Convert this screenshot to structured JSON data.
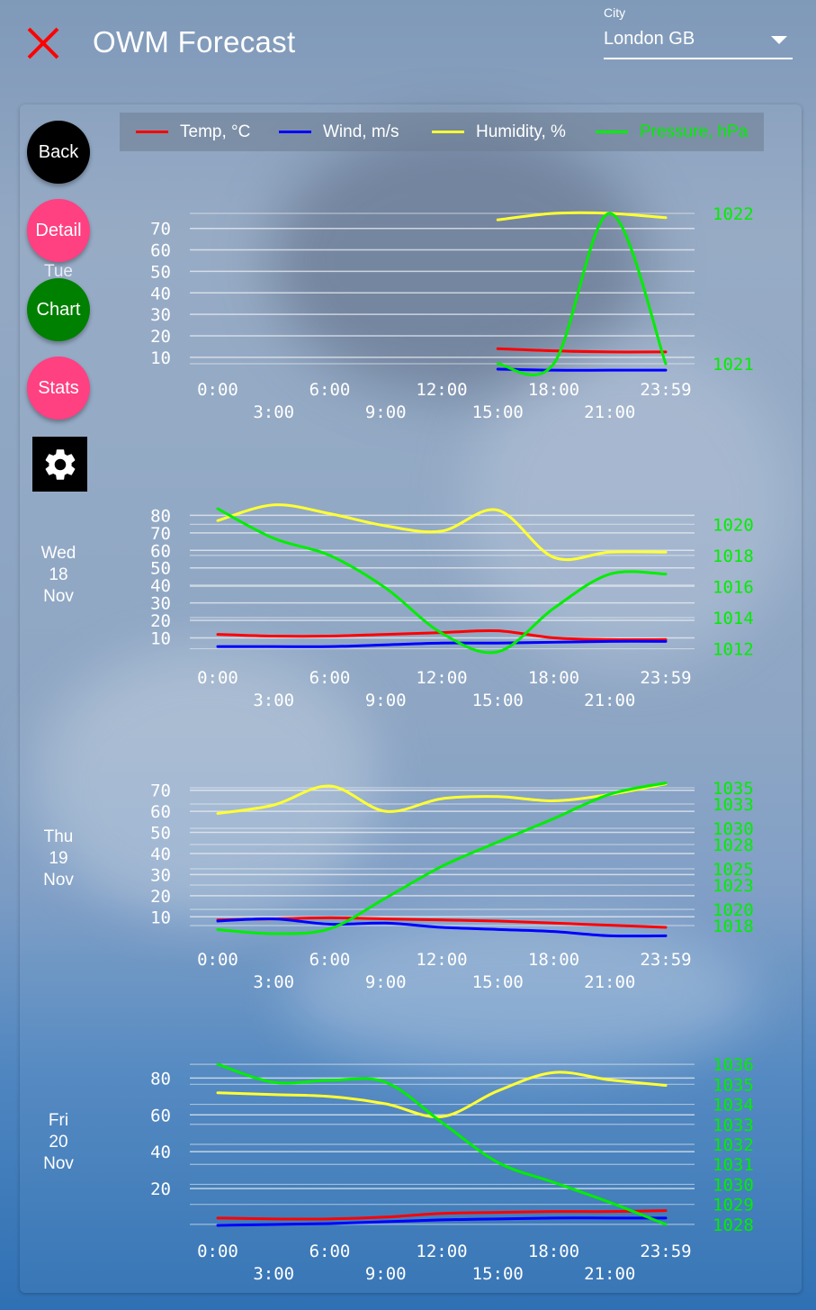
{
  "app": {
    "title": "OWM Forecast",
    "city_label": "City",
    "city_value": "London GB"
  },
  "icons": {
    "close": "close-icon",
    "settings": "gear-icon",
    "dropdown": "chevron-down-icon"
  },
  "colors": {
    "temp": "#ff0000",
    "wind": "#0000ff",
    "humidity": "#ffff33",
    "pressure": "#00ee00",
    "close": "#ff0000",
    "back": "#000000",
    "detail": "#ff4081",
    "chart": "#008000",
    "stats": "#ff4081"
  },
  "buttons": {
    "back": "Back",
    "detail": "Detail",
    "chart": "Chart",
    "stats": "Stats"
  },
  "legend": [
    {
      "label": "Temp, °C",
      "color": "#ff0000"
    },
    {
      "label": "Wind, m/s",
      "color": "#0000ff"
    },
    {
      "label": "Humidity, %",
      "color": "#ffff33"
    },
    {
      "label": "Pressure, hPa",
      "color": "#00ee00"
    }
  ],
  "days": [
    {
      "lines": [
        "Tue"
      ]
    },
    {
      "lines": [
        "Wed",
        "18",
        "Nov"
      ]
    },
    {
      "lines": [
        "Thu",
        "19",
        "Nov"
      ]
    },
    {
      "lines": [
        "Fri",
        "20",
        "Nov"
      ]
    }
  ],
  "chart_data": [
    {
      "type": "line",
      "day": "Tue",
      "x_ticks_row1": [
        "0:00",
        "6:00",
        "12:00",
        "18:00",
        "23:59"
      ],
      "x_ticks_row2": [
        "3:00",
        "9:00",
        "15:00",
        "21:00"
      ],
      "y_left": {
        "ticks": [
          "10",
          "20",
          "30",
          "40",
          "50",
          "60",
          "70"
        ],
        "lim": [
          7,
          77
        ]
      },
      "y_right": {
        "ticks": [
          "1021",
          "1022"
        ],
        "lim": [
          1021.0,
          1022.0
        ]
      },
      "series": [
        {
          "name": "Humidity, %",
          "axis": "left",
          "x": [
            15,
            18,
            21,
            24
          ],
          "values": [
            74,
            77,
            77,
            75
          ]
        },
        {
          "name": "Temp, °C",
          "axis": "left",
          "x": [
            15,
            18,
            21,
            24
          ],
          "values": [
            14,
            13,
            12.5,
            12.5
          ]
        },
        {
          "name": "Wind, m/s",
          "axis": "left",
          "x": [
            15,
            18,
            21,
            24
          ],
          "values": [
            4.5,
            4,
            4,
            4
          ]
        },
        {
          "name": "Pressure, hPa",
          "axis": "right",
          "x": [
            15,
            18,
            21,
            24
          ],
          "values": [
            1021.0,
            1021.0,
            1022.0,
            1021.0
          ]
        }
      ]
    },
    {
      "type": "line",
      "day": "Wed 18 Nov",
      "x_ticks_row1": [
        "0:00",
        "6:00",
        "12:00",
        "18:00",
        "23:59"
      ],
      "x_ticks_row2": [
        "3:00",
        "9:00",
        "15:00",
        "21:00"
      ],
      "y_left": {
        "ticks": [
          "10",
          "20",
          "30",
          "40",
          "50",
          "60",
          "70",
          "80"
        ],
        "lim": [
          2,
          90
        ]
      },
      "y_right": {
        "ticks": [
          "1012",
          "1014",
          "1016",
          "1018",
          "1020"
        ],
        "lim": [
          1011.8,
          1021.7
        ]
      },
      "series": [
        {
          "name": "Humidity, %",
          "axis": "left",
          "x": [
            0,
            3,
            6,
            9,
            12,
            15,
            18,
            21,
            24
          ],
          "values": [
            77,
            86,
            81,
            74,
            71,
            83,
            56,
            59,
            59
          ]
        },
        {
          "name": "Temp, °C",
          "axis": "left",
          "x": [
            0,
            3,
            6,
            9,
            12,
            15,
            18,
            21,
            24
          ],
          "values": [
            12,
            11,
            11,
            12,
            13,
            14,
            10,
            9,
            9
          ]
        },
        {
          "name": "Wind, m/s",
          "axis": "left",
          "x": [
            0,
            3,
            6,
            9,
            12,
            15,
            18,
            21,
            24
          ],
          "values": [
            5,
            5,
            5,
            6,
            7,
            7,
            7.5,
            8,
            8
          ]
        },
        {
          "name": "Pressure, hPa",
          "axis": "right",
          "x": [
            0,
            3,
            6,
            9,
            12,
            15,
            18,
            21,
            24
          ],
          "values": [
            1021.0,
            1019.1,
            1018.0,
            1015.9,
            1013.0,
            1011.8,
            1014.6,
            1016.8,
            1016.8
          ]
        }
      ]
    },
    {
      "type": "line",
      "day": "Thu 19 Nov",
      "x_ticks_row1": [
        "0:00",
        "6:00",
        "12:00",
        "18:00",
        "23:59"
      ],
      "x_ticks_row2": [
        "3:00",
        "9:00",
        "15:00",
        "21:00"
      ],
      "y_left": {
        "ticks": [
          "10",
          "20",
          "30",
          "40",
          "50",
          "60",
          "70"
        ],
        "lim": [
          2,
          75
        ]
      },
      "y_right": {
        "ticks": [
          "1018",
          "1020",
          "1023",
          "1025",
          "1028",
          "1030",
          "1033",
          "1035"
        ],
        "lim": [
          1017,
          1036
        ]
      },
      "series": [
        {
          "name": "Humidity, %",
          "axis": "left",
          "x": [
            0,
            3,
            6,
            9,
            12,
            15,
            18,
            21,
            24
          ],
          "values": [
            59,
            63,
            72,
            60,
            66,
            67,
            65,
            68,
            73
          ]
        },
        {
          "name": "Temp, °C",
          "axis": "left",
          "x": [
            0,
            3,
            6,
            9,
            12,
            15,
            18,
            21,
            24
          ],
          "values": [
            8.5,
            9,
            9.5,
            9,
            8.5,
            8,
            7,
            6,
            5
          ]
        },
        {
          "name": "Wind, m/s",
          "axis": "left",
          "x": [
            0,
            3,
            6,
            9,
            12,
            15,
            18,
            21,
            24
          ],
          "values": [
            8,
            9,
            6.5,
            7,
            5,
            4,
            3,
            1,
            1
          ]
        },
        {
          "name": "Pressure, hPa",
          "axis": "right",
          "x": [
            0,
            3,
            6,
            9,
            12,
            15,
            18,
            21,
            24
          ],
          "values": [
            1017.5,
            1017.0,
            1017.6,
            1021.4,
            1025.3,
            1028.3,
            1031.2,
            1034.2,
            1035.6
          ]
        }
      ]
    },
    {
      "type": "line",
      "day": "Fri 20 Nov",
      "x_ticks_row1": [
        "0:00",
        "6:00",
        "12:00",
        "18:00",
        "23:59"
      ],
      "x_ticks_row2": [
        "3:00",
        "9:00",
        "15:00",
        "21:00"
      ],
      "y_left": {
        "ticks": [
          "20",
          "40",
          "60",
          "80"
        ],
        "lim": [
          0,
          88
        ]
      },
      "y_right": {
        "ticks": [
          "1028",
          "1029",
          "1030",
          "1031",
          "1032",
          "1033",
          "1034",
          "1035",
          "1036"
        ],
        "lim": [
          1027.95,
          1036.05
        ]
      },
      "series": [
        {
          "name": "Humidity, %",
          "axis": "left",
          "x": [
            0,
            3,
            6,
            9,
            12,
            15,
            18,
            21,
            24
          ],
          "values": [
            72,
            71,
            70,
            66,
            59,
            73,
            83,
            79,
            76
          ]
        },
        {
          "name": "Temp, °C",
          "axis": "left",
          "x": [
            0,
            3,
            6,
            9,
            12,
            15,
            18,
            21,
            24
          ],
          "values": [
            4,
            3.5,
            3.5,
            4.5,
            6.5,
            7,
            7.5,
            7.5,
            8
          ]
        },
        {
          "name": "Wind, m/s",
          "axis": "left",
          "x": [
            0,
            3,
            6,
            9,
            12,
            15,
            18,
            21,
            24
          ],
          "values": [
            0,
            0.5,
            1,
            2,
            3,
            3.5,
            4,
            4,
            4
          ]
        },
        {
          "name": "Pressure, hPa",
          "axis": "right",
          "x": [
            0,
            3,
            6,
            9,
            12,
            15,
            18,
            21,
            24
          ],
          "values": [
            1036.0,
            1035.1,
            1035.2,
            1035.1,
            1033.1,
            1031.1,
            1030.1,
            1029.1,
            1028.0
          ]
        }
      ]
    }
  ]
}
